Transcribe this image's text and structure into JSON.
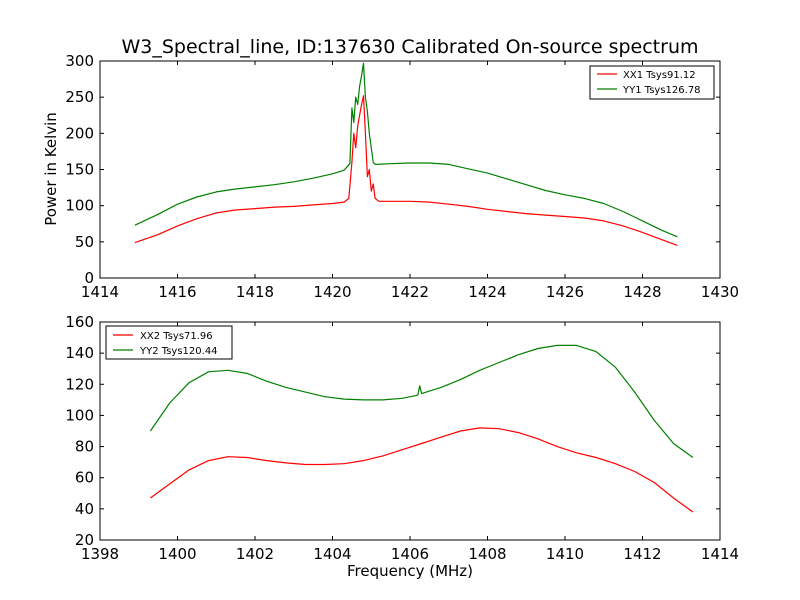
{
  "chart_data": [
    {
      "type": "line",
      "title": "W3_Spectral_line, ID:137630 Calibrated On-source spectrum",
      "xlabel": "",
      "ylabel": "Power in Kelvin",
      "xlim": [
        1414,
        1430
      ],
      "ylim": [
        0,
        300
      ],
      "xticks": [
        1414,
        1416,
        1418,
        1420,
        1422,
        1424,
        1426,
        1428,
        1430
      ],
      "yticks": [
        0,
        50,
        100,
        150,
        200,
        250,
        300
      ],
      "legend_position": "top-right",
      "series": [
        {
          "name": "XX1 Tsys91.12",
          "color": "#ff0000",
          "points": [
            [
              1414.9,
              49
            ],
            [
              1415.5,
              60
            ],
            [
              1416.0,
              72
            ],
            [
              1416.5,
              82
            ],
            [
              1417.0,
              90
            ],
            [
              1417.5,
              94
            ],
            [
              1418.0,
              96
            ],
            [
              1418.5,
              98
            ],
            [
              1419.0,
              99
            ],
            [
              1419.5,
              101
            ],
            [
              1420.0,
              103
            ],
            [
              1420.3,
              105
            ],
            [
              1420.42,
              110
            ],
            [
              1420.5,
              160
            ],
            [
              1420.55,
              200
            ],
            [
              1420.6,
              180
            ],
            [
              1420.65,
              210
            ],
            [
              1420.7,
              225
            ],
            [
              1420.75,
              240
            ],
            [
              1420.8,
              252
            ],
            [
              1420.85,
              200
            ],
            [
              1420.9,
              140
            ],
            [
              1420.95,
              150
            ],
            [
              1421.0,
              120
            ],
            [
              1421.05,
              130
            ],
            [
              1421.1,
              110
            ],
            [
              1421.2,
              106
            ],
            [
              1422.0,
              106
            ],
            [
              1422.5,
              105
            ],
            [
              1423.0,
              102
            ],
            [
              1423.5,
              99
            ],
            [
              1424.0,
              95
            ],
            [
              1424.5,
              92
            ],
            [
              1425.0,
              89
            ],
            [
              1425.5,
              87
            ],
            [
              1426.0,
              85
            ],
            [
              1426.5,
              83
            ],
            [
              1427.0,
              79
            ],
            [
              1427.5,
              72
            ],
            [
              1428.0,
              63
            ],
            [
              1428.5,
              53
            ],
            [
              1428.9,
              45
            ]
          ]
        },
        {
          "name": "YY1 Tsys126.78",
          "color": "#008000",
          "points": [
            [
              1414.9,
              73
            ],
            [
              1415.5,
              88
            ],
            [
              1416.0,
              102
            ],
            [
              1416.5,
              112
            ],
            [
              1417.0,
              119
            ],
            [
              1417.5,
              123
            ],
            [
              1418.0,
              126
            ],
            [
              1418.5,
              129
            ],
            [
              1419.0,
              133
            ],
            [
              1419.5,
              138
            ],
            [
              1420.0,
              144
            ],
            [
              1420.3,
              149
            ],
            [
              1420.45,
              158
            ],
            [
              1420.5,
              235
            ],
            [
              1420.55,
              215
            ],
            [
              1420.6,
              250
            ],
            [
              1420.65,
              240
            ],
            [
              1420.7,
              265
            ],
            [
              1420.75,
              280
            ],
            [
              1420.8,
              297
            ],
            [
              1420.85,
              250
            ],
            [
              1420.9,
              230
            ],
            [
              1420.95,
              200
            ],
            [
              1421.0,
              180
            ],
            [
              1421.05,
              160
            ],
            [
              1421.1,
              157
            ],
            [
              1421.5,
              158
            ],
            [
              1422.0,
              159
            ],
            [
              1422.5,
              159
            ],
            [
              1423.0,
              157
            ],
            [
              1423.5,
              151
            ],
            [
              1424.0,
              145
            ],
            [
              1424.5,
              137
            ],
            [
              1425.0,
              129
            ],
            [
              1425.5,
              121
            ],
            [
              1426.0,
              115
            ],
            [
              1426.5,
              110
            ],
            [
              1427.0,
              103
            ],
            [
              1427.5,
              92
            ],
            [
              1428.0,
              79
            ],
            [
              1428.5,
              66
            ],
            [
              1428.9,
              57
            ]
          ]
        }
      ]
    },
    {
      "type": "line",
      "title": "",
      "xlabel": "Frequency (MHz)",
      "ylabel": "",
      "xlim": [
        1398,
        1414
      ],
      "ylim": [
        20,
        160
      ],
      "xticks": [
        1398,
        1400,
        1402,
        1404,
        1406,
        1408,
        1410,
        1412,
        1414
      ],
      "yticks": [
        20,
        40,
        60,
        80,
        100,
        120,
        140,
        160
      ],
      "legend_position": "top-left",
      "series": [
        {
          "name": "XX2 Tsys71.96",
          "color": "#ff0000",
          "points": [
            [
              1399.3,
              47
            ],
            [
              1399.8,
              56
            ],
            [
              1400.3,
              65
            ],
            [
              1400.8,
              71
            ],
            [
              1401.3,
              73.5
            ],
            [
              1401.8,
              73
            ],
            [
              1402.3,
              71
            ],
            [
              1402.8,
              69.5
            ],
            [
              1403.3,
              68.5
            ],
            [
              1403.8,
              68.5
            ],
            [
              1404.3,
              69
            ],
            [
              1404.8,
              71
            ],
            [
              1405.3,
              74
            ],
            [
              1405.8,
              78
            ],
            [
              1406.3,
              82
            ],
            [
              1406.8,
              86
            ],
            [
              1407.3,
              90
            ],
            [
              1407.8,
              92
            ],
            [
              1408.3,
              91.5
            ],
            [
              1408.8,
              89
            ],
            [
              1409.3,
              85
            ],
            [
              1409.8,
              80
            ],
            [
              1410.3,
              76
            ],
            [
              1410.8,
              73
            ],
            [
              1411.3,
              69
            ],
            [
              1411.8,
              64
            ],
            [
              1412.3,
              57
            ],
            [
              1412.8,
              47
            ],
            [
              1413.3,
              38
            ]
          ]
        },
        {
          "name": "YY2 Tsys120.44",
          "color": "#008000",
          "points": [
            [
              1399.3,
              90
            ],
            [
              1399.8,
              108
            ],
            [
              1400.3,
              121
            ],
            [
              1400.8,
              128
            ],
            [
              1401.3,
              129
            ],
            [
              1401.8,
              127
            ],
            [
              1402.3,
              122
            ],
            [
              1402.8,
              118
            ],
            [
              1403.3,
              115
            ],
            [
              1403.8,
              112
            ],
            [
              1404.3,
              110.5
            ],
            [
              1404.8,
              110
            ],
            [
              1405.3,
              110
            ],
            [
              1405.8,
              111
            ],
            [
              1406.2,
              113
            ],
            [
              1406.25,
              119
            ],
            [
              1406.3,
              114
            ],
            [
              1406.8,
              118
            ],
            [
              1407.3,
              123
            ],
            [
              1407.8,
              129
            ],
            [
              1408.3,
              134
            ],
            [
              1408.8,
              139
            ],
            [
              1409.3,
              143
            ],
            [
              1409.8,
              145
            ],
            [
              1410.3,
              145
            ],
            [
              1410.8,
              141
            ],
            [
              1411.3,
              131
            ],
            [
              1411.8,
              115
            ],
            [
              1412.3,
              97
            ],
            [
              1412.8,
              82
            ],
            [
              1413.3,
              73
            ]
          ]
        }
      ]
    }
  ]
}
